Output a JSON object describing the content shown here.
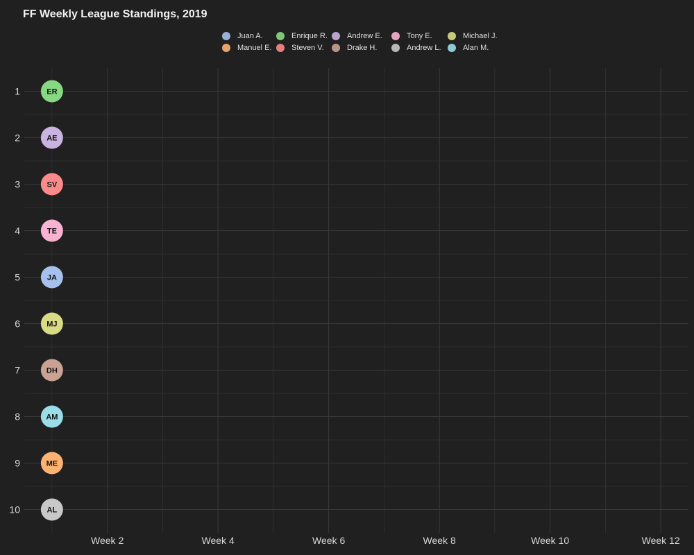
{
  "chart_data": {
    "type": "scatter",
    "title": "FF Weekly League Standings, 2019",
    "xlabel": "",
    "ylabel": "",
    "x_ticks": [
      "Week 2",
      "Week 4",
      "Week 6",
      "Week 8",
      "Week 10",
      "Week 12"
    ],
    "x_tick_values": [
      2,
      4,
      6,
      8,
      10,
      12
    ],
    "xlim": [
      0.5,
      12.5
    ],
    "y_ticks": [
      1,
      2,
      3,
      4,
      5,
      6,
      7,
      8,
      9,
      10
    ],
    "ylim": [
      10.5,
      0.5
    ],
    "y_reversed": true,
    "grid": true,
    "legend_position": "top",
    "legend": [
      {
        "name": "Juan A.",
        "color": "#a6c1ee"
      },
      {
        "name": "Manuel E.",
        "color": "#fdb272"
      },
      {
        "name": "Enrique R.",
        "color": "#86d982"
      },
      {
        "name": "Steven V.",
        "color": "#fb8a8a"
      },
      {
        "name": "Andrew E.",
        "color": "#c9b3e0"
      },
      {
        "name": "Drake H.",
        "color": "#c9a293"
      },
      {
        "name": "Tony E.",
        "color": "#f9b3d1"
      },
      {
        "name": "Andrew L.",
        "color": "#c8c8c8"
      },
      {
        "name": "Michael J.",
        "color": "#d9db84"
      },
      {
        "name": "Alan M.",
        "color": "#99dde9"
      }
    ],
    "points": [
      {
        "name": "Enrique R.",
        "label": "ER",
        "week": 1,
        "rank": 1,
        "color": "#86d982"
      },
      {
        "name": "Andrew E.",
        "label": "AE",
        "week": 1,
        "rank": 2,
        "color": "#c9b3e0"
      },
      {
        "name": "Steven V.",
        "label": "SV",
        "week": 1,
        "rank": 3,
        "color": "#fb8a8a"
      },
      {
        "name": "Tony E.",
        "label": "TE",
        "week": 1,
        "rank": 4,
        "color": "#f9b3d1"
      },
      {
        "name": "Juan A.",
        "label": "JA",
        "week": 1,
        "rank": 5,
        "color": "#a6c1ee"
      },
      {
        "name": "Michael J.",
        "label": "MJ",
        "week": 1,
        "rank": 6,
        "color": "#d9db84"
      },
      {
        "name": "Drake H.",
        "label": "DH",
        "week": 1,
        "rank": 7,
        "color": "#c9a293"
      },
      {
        "name": "Alan M.",
        "label": "AM",
        "week": 1,
        "rank": 8,
        "color": "#99dde9"
      },
      {
        "name": "Manuel E.",
        "label": "ME",
        "week": 1,
        "rank": 9,
        "color": "#fdb272"
      },
      {
        "name": "Andrew L.",
        "label": "AL",
        "week": 1,
        "rank": 10,
        "color": "#c8c8c8"
      }
    ]
  }
}
